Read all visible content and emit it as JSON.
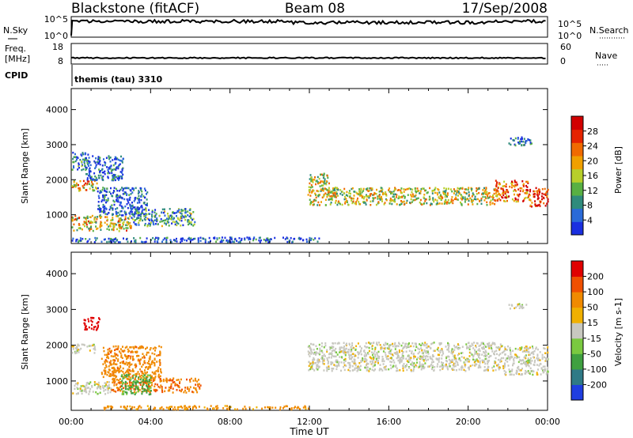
{
  "header": {
    "station": "Blackstone (fitACF)",
    "beam": "Beam 08",
    "date": "17/Sep/2008"
  },
  "panels": {
    "nsky": {
      "left_label": "N.Sky",
      "right_label": "N.Search",
      "left_ticks": [
        "10^5",
        "10^0"
      ],
      "right_ticks": [
        "10^5",
        "10^0"
      ]
    },
    "freq": {
      "left_label_line1": "Freq.",
      "left_label_line2": "[MHz]",
      "right_label": "Nave",
      "left_ticks": [
        "18",
        "8"
      ],
      "right_ticks": [
        "60",
        "0"
      ]
    },
    "cpid": {
      "label": "CPID",
      "value": "themis (tau) 3310"
    }
  },
  "x_ticks": [
    "00:00",
    "04:00",
    "08:00",
    "12:00",
    "16:00",
    "20:00",
    "00:00"
  ],
  "xlabel": "Time UT",
  "chart_data": [
    {
      "type": "heatmap",
      "name": "power-panel",
      "ylabel": "Slant Range [km]",
      "ylim": [
        180,
        4600
      ],
      "yticks": [
        1000,
        2000,
        3000,
        4000
      ],
      "xlim_hours": [
        0,
        24
      ],
      "colorbar": {
        "label": "Power [dB]",
        "ticks": [
          "4",
          "8",
          "12",
          "16",
          "20",
          "24",
          "28"
        ],
        "colors": [
          "#1a2fe0",
          "#2a6ad8",
          "#2f8b7c",
          "#58b043",
          "#b8cf2a",
          "#f0a000",
          "#f06a00",
          "#e52400",
          "#d10000"
        ]
      },
      "regions": [
        {
          "t0": 0.0,
          "t1": 3.0,
          "r0": 560,
          "r1": 1000,
          "intensity": 0.55
        },
        {
          "t0": 3.0,
          "t1": 6.2,
          "r0": 700,
          "r1": 1200,
          "intensity": 0.3
        },
        {
          "t0": 0.0,
          "t1": 1.3,
          "r0": 1700,
          "r1": 2000,
          "intensity": 0.6
        },
        {
          "t0": 1.3,
          "t1": 3.8,
          "r0": 1000,
          "r1": 1800,
          "intensity": 0.15
        },
        {
          "t0": 0.0,
          "t1": 0.9,
          "r0": 2300,
          "r1": 2800,
          "intensity": 0.2
        },
        {
          "t0": 0.7,
          "t1": 2.6,
          "r0": 2000,
          "r1": 2700,
          "intensity": 0.12
        },
        {
          "t0": 0.0,
          "t1": 12.5,
          "r0": 240,
          "r1": 380,
          "intensity": 0.1
        },
        {
          "t0": 11.9,
          "t1": 13.0,
          "r0": 1300,
          "r1": 2200,
          "intensity": 0.5
        },
        {
          "t0": 13.0,
          "t1": 21.3,
          "r0": 1300,
          "r1": 1800,
          "intensity": 0.5
        },
        {
          "t0": 21.3,
          "t1": 23.0,
          "r0": 1400,
          "r1": 2000,
          "intensity": 0.75
        },
        {
          "t0": 23.0,
          "t1": 24.0,
          "r0": 1250,
          "r1": 1800,
          "intensity": 0.85
        },
        {
          "t0": 22.0,
          "t1": 23.2,
          "r0": 3000,
          "r1": 3250,
          "intensity": 0.15
        }
      ]
    },
    {
      "type": "heatmap",
      "name": "velocity-panel",
      "ylabel": "Slant Range [km]",
      "ylim": [
        180,
        4600
      ],
      "yticks": [
        1000,
        2000,
        3000,
        4000
      ],
      "xlim_hours": [
        0,
        24
      ],
      "colorbar": {
        "label": "Velocity [m s-1]",
        "ticks": [
          "200",
          "100",
          "50",
          "15",
          "-15",
          "-50",
          "-100",
          "-200"
        ],
        "colors": [
          "#1f3ee0",
          "#2f7a86",
          "#3fa040",
          "#7ac940",
          "#c8c8c0",
          "#f0b000",
          "#f08a00",
          "#f05000",
          "#e00000"
        ]
      },
      "regions": [
        {
          "t0": 0.6,
          "t1": 1.4,
          "r0": 2450,
          "r1": 2800,
          "velocity": -200
        },
        {
          "t0": 0.0,
          "t1": 1.2,
          "r0": 1800,
          "r1": 2050,
          "velocity": 0
        },
        {
          "t0": 0.0,
          "t1": 2.0,
          "r0": 650,
          "r1": 1000,
          "velocity": 0
        },
        {
          "t0": 2.0,
          "t1": 6.5,
          "r0": 700,
          "r1": 1100,
          "velocity": -70
        },
        {
          "t0": 1.5,
          "t1": 4.5,
          "r0": 1100,
          "r1": 2000,
          "velocity": -60
        },
        {
          "t0": 2.5,
          "t1": 4.0,
          "r0": 650,
          "r1": 1200,
          "velocity": 40
        },
        {
          "t0": 1.5,
          "t1": 12.0,
          "r0": 230,
          "r1": 330,
          "velocity": -45
        },
        {
          "t0": 11.9,
          "t1": 21.8,
          "r0": 1300,
          "r1": 2100,
          "velocity": 0
        },
        {
          "t0": 21.8,
          "t1": 24.0,
          "r0": 1200,
          "r1": 2000,
          "velocity": 0
        },
        {
          "t0": 22.0,
          "t1": 23.0,
          "r0": 3050,
          "r1": 3200,
          "velocity": 0
        }
      ]
    }
  ]
}
